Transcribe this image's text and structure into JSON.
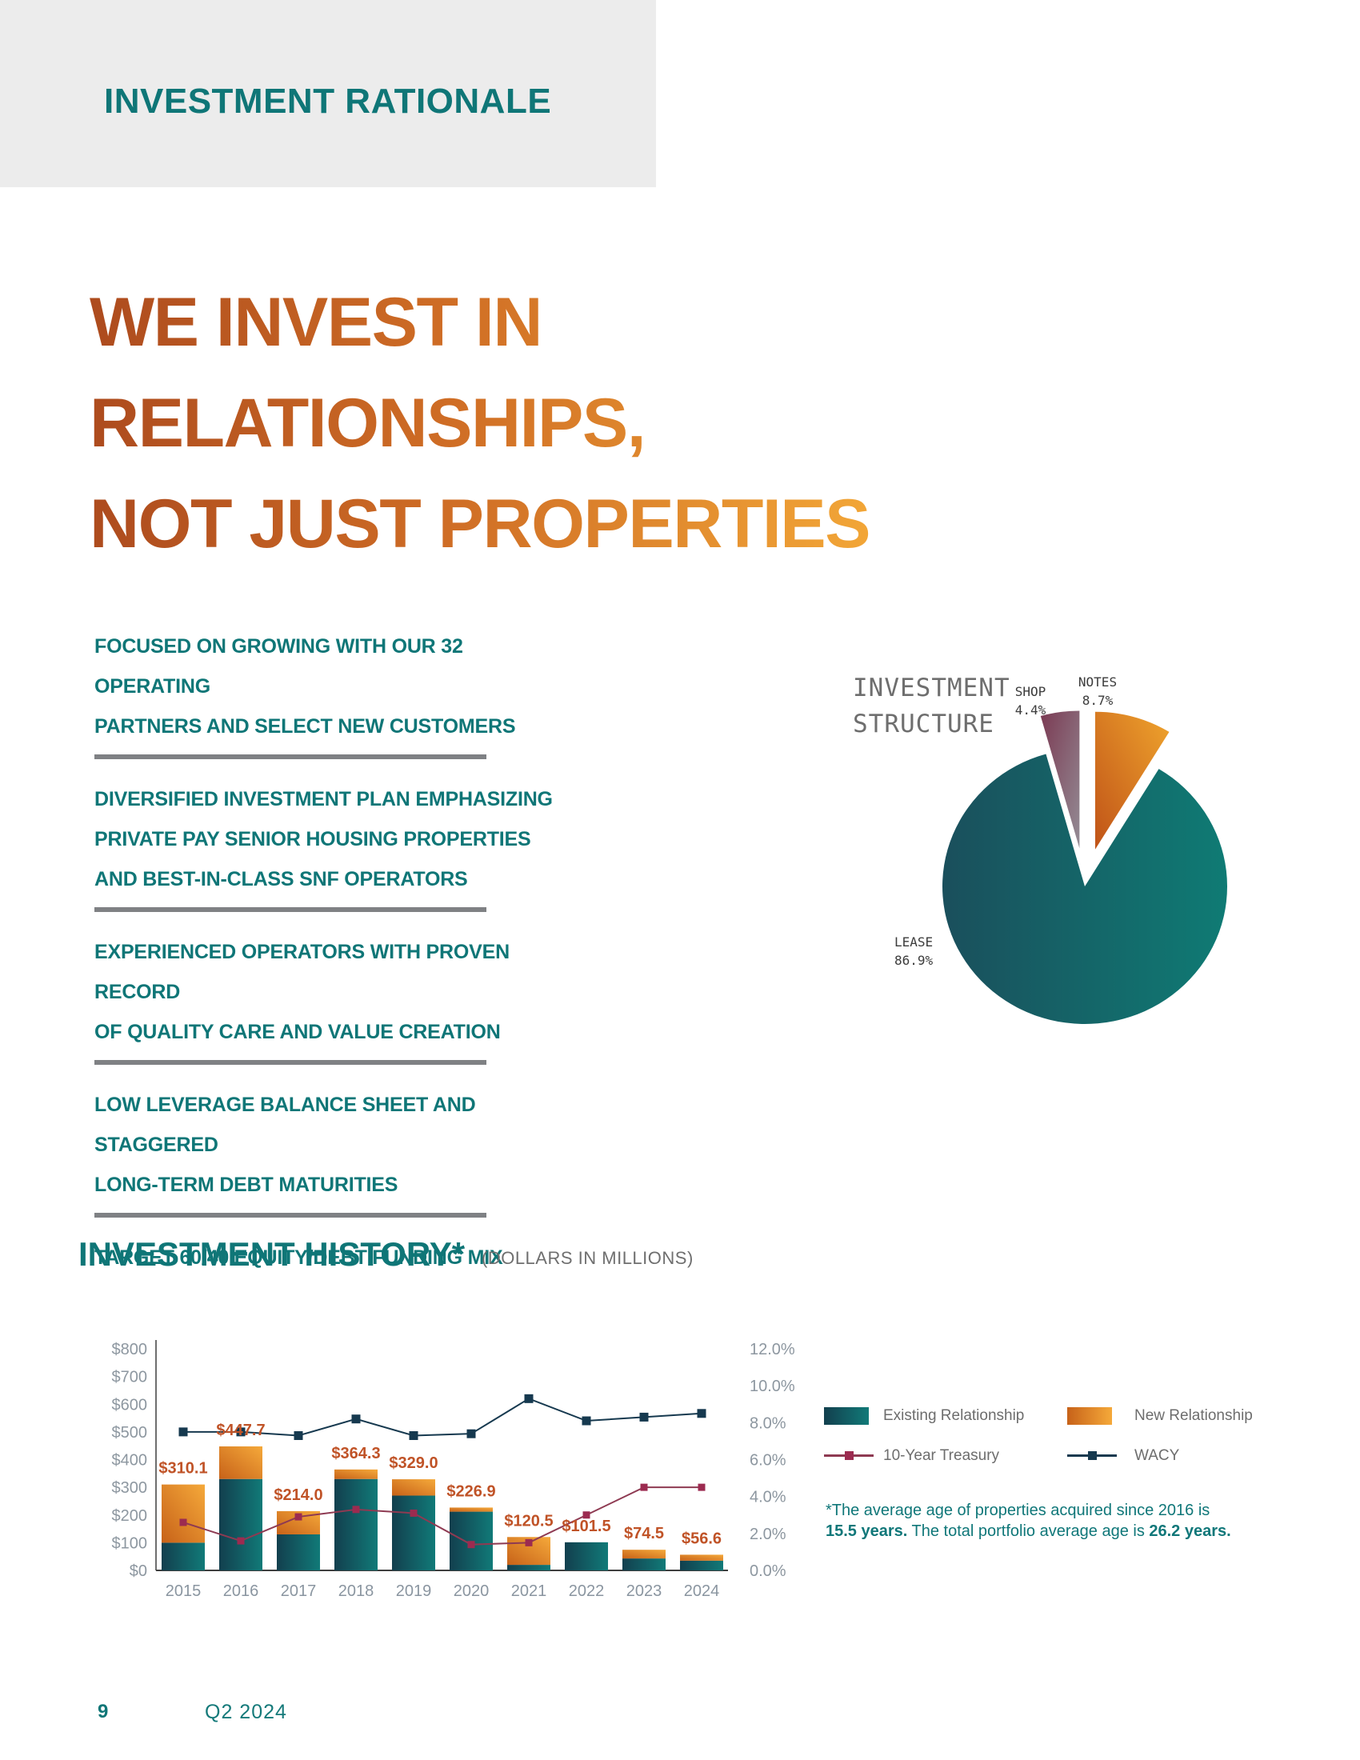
{
  "header": {
    "section_label": "INVESTMENT RATIONALE"
  },
  "headline": {
    "lines": [
      "WE INVEST IN",
      "RELATIONSHIPS,",
      "NOT JUST PROPERTIES"
    ]
  },
  "bullets": [
    {
      "lines": [
        "FOCUSED ON GROWING WITH OUR 32 OPERATING",
        "PARTNERS AND SELECT NEW CUSTOMERS"
      ]
    },
    {
      "lines": [
        "DIVERSIFIED INVESTMENT PLAN EMPHASIZING",
        "PRIVATE PAY SENIOR HOUSING PROPERTIES",
        "AND BEST-IN-CLASS SNF OPERATORS"
      ]
    },
    {
      "lines": [
        "EXPERIENCED OPERATORS WITH PROVEN RECORD",
        "OF QUALITY CARE AND VALUE CREATION"
      ]
    },
    {
      "lines": [
        "LOW LEVERAGE BALANCE SHEET AND STAGGERED",
        "LONG-TERM DEBT MATURITIES"
      ]
    },
    {
      "lines": [
        "TARGET 60/40 EQUITY/DEBT FUNDING MIX"
      ]
    }
  ],
  "history": {
    "title": "INVESTMENT HISTORY*",
    "subtitle": "(DOLLARS IN MILLIONS)"
  },
  "footnote": {
    "prefix": "*The average age of properties acquired since 2016 is",
    "bold1": "15.5 years.",
    "middle": " The total portfolio average age is ",
    "bold2": "26.2 years."
  },
  "footer": {
    "page_number": "9",
    "period": "Q2 2024"
  },
  "colors": {
    "teal_text": "#0f7677",
    "header_band": "#ececec",
    "divider_gray": "#7f8184",
    "headline_gradient": [
      "#ad4b1e",
      "#cf6d25",
      "#f2a637"
    ],
    "bar_teal": [
      "#123f4e",
      "#117a78"
    ],
    "bar_orange": [
      "#c76219",
      "#f5a93a"
    ],
    "pie_lease": [
      "#1a4f5c",
      "#0f7b74"
    ],
    "pie_shop": [
      "#7b3a53",
      "#948c95"
    ],
    "pie_notes": [
      "#c05318",
      "#efa42d"
    ],
    "treasury_line": "#8e3a52",
    "treasury_marker": "#9c2b50",
    "wacy_line": "#16394f",
    "value_label": "#c05327",
    "axis_gray": "#8d97a0",
    "pie_title_gray": "#6e6e6e"
  },
  "chart_data": [
    {
      "type": "pie",
      "title": "INVESTMENT STRUCTURE",
      "title_lines": [
        "INVESTMENT",
        "STRUCTURE"
      ],
      "slices": [
        {
          "label": "NOTES",
          "value": 8.7,
          "display": "8.7%",
          "exploded": true
        },
        {
          "label": "LEASE",
          "value": 86.9,
          "display": "86.9%",
          "exploded": false
        },
        {
          "label": "SHOP",
          "value": 4.4,
          "display": "4.4%",
          "exploded": true
        }
      ]
    },
    {
      "type": "bar",
      "title": "INVESTMENT HISTORY*",
      "subtitle": "(DOLLARS IN MILLIONS)",
      "categories": [
        "2015",
        "2016",
        "2017",
        "2018",
        "2019",
        "2020",
        "2021",
        "2022",
        "2023",
        "2024"
      ],
      "series": [
        {
          "name": "Existing Relationship",
          "type": "bar",
          "stack": true,
          "values": [
            100,
            330,
            130,
            330,
            270,
            212,
            20,
            101.5,
            43,
            35
          ]
        },
        {
          "name": "New Relationship",
          "type": "bar",
          "stack": true,
          "values": [
            210.1,
            117.7,
            84.0,
            34.3,
            59.0,
            14.9,
            100.5,
            0,
            31.5,
            21.6
          ]
        },
        {
          "name": "10-Year Treasury",
          "type": "line",
          "axis": "right",
          "values": [
            2.6,
            1.6,
            2.9,
            3.3,
            3.1,
            1.4,
            1.5,
            3.0,
            4.5,
            4.5
          ]
        },
        {
          "name": "WACY",
          "type": "line",
          "axis": "right",
          "values": [
            7.5,
            7.5,
            7.3,
            8.2,
            7.3,
            7.4,
            9.3,
            8.1,
            8.3,
            8.5
          ]
        }
      ],
      "bar_totals": [
        310.1,
        447.7,
        214.0,
        364.3,
        329.0,
        226.9,
        120.5,
        101.5,
        74.5,
        56.6
      ],
      "bar_total_labels": [
        "$310.1",
        "$447.7",
        "$214.0",
        "$364.3",
        "$329.0",
        "$226.9",
        "$120.5",
        "$101.5",
        "$74.5",
        "$56.6"
      ],
      "left_axis": {
        "ticks": [
          "$0",
          "$100",
          "$200",
          "$300",
          "$400",
          "$500",
          "$600",
          "$700",
          "$800"
        ],
        "range": [
          0,
          800
        ]
      },
      "right_axis": {
        "ticks": [
          "0.0%",
          "2.0%",
          "4.0%",
          "6.0%",
          "8.0%",
          "10.0%",
          "12.0%"
        ],
        "range": [
          0,
          12
        ]
      },
      "grid": false,
      "legend_position": "right"
    }
  ]
}
